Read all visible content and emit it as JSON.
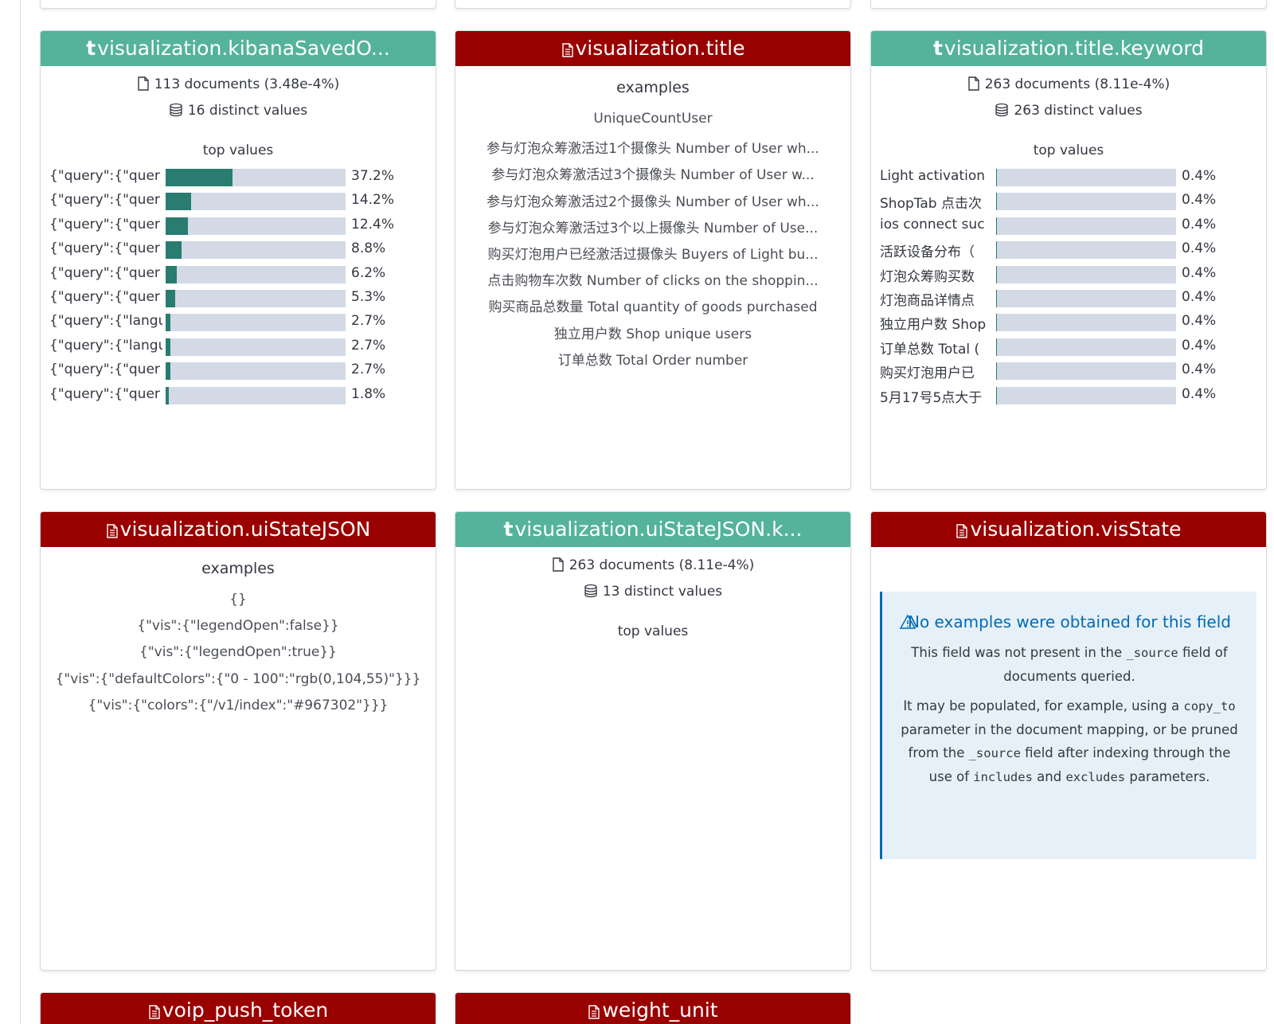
{
  "cards": [
    {
      "icon": "t",
      "name": "visualization.kibanaSavedO...",
      "header_color": "#54b39a",
      "documents": "113 documents (3.48e-4%)",
      "distinct": "16 distinct values",
      "top_values_title": "top values",
      "top_values": [
        {
          "label": "{\"query\":{\"quer",
          "value": 37.2,
          "value_label": "37.2%"
        },
        {
          "label": "{\"query\":{\"quer",
          "value": 14.2,
          "value_label": "14.2%"
        },
        {
          "label": "{\"query\":{\"quer",
          "value": 12.4,
          "value_label": "12.4%"
        },
        {
          "label": "{\"query\":{\"quer",
          "value": 8.8,
          "value_label": "8.8%"
        },
        {
          "label": "{\"query\":{\"quer",
          "value": 6.2,
          "value_label": "6.2%"
        },
        {
          "label": "{\"query\":{\"quer",
          "value": 5.3,
          "value_label": "5.3%"
        },
        {
          "label": "{\"query\":{\"langu",
          "value": 2.7,
          "value_label": "2.7%"
        },
        {
          "label": "{\"query\":{\"langu",
          "value": 2.7,
          "value_label": "2.7%"
        },
        {
          "label": "{\"query\":{\"quer",
          "value": 2.7,
          "value_label": "2.7%"
        },
        {
          "label": "{\"query\":{\"quer",
          "value": 1.8,
          "value_label": "1.8%"
        }
      ]
    },
    {
      "name": "visualization.title",
      "header_color": "#990000",
      "examples_title": "examples",
      "examples": [
        "UniqueCountUser",
        "参与灯泡众筹激活过1个摄像头 Number of User wh...",
        "参与灯泡众筹激活过3个摄像头 Number of User w...",
        "参与灯泡众筹激活过2个摄像头 Number of User wh...",
        "参与灯泡众筹激活过3个以上摄像头 Number of Use...",
        "购买灯泡用户已经激活过摄像头 Buyers of Light bu...",
        "点击购物车次数 Number of clicks on the shoppin...",
        "购买商品总数量 Total quantity of goods purchased",
        "独立用户数 Shop unique users",
        "订单总数 Total Order number"
      ]
    },
    {
      "icon": "t",
      "name": "visualization.title.keyword",
      "header_color": "#54b39a",
      "documents": "263 documents (8.11e-4%)",
      "distinct": "263 distinct values",
      "top_values_title": "top values",
      "top_values": [
        {
          "label": "Light activation",
          "value": 0.4,
          "value_label": "0.4%"
        },
        {
          "label": "ShopTab 点击次",
          "value": 0.4,
          "value_label": "0.4%"
        },
        {
          "label": "ios connect suc",
          "value": 0.4,
          "value_label": "0.4%"
        },
        {
          "label": "活跃设备分布（",
          "value": 0.4,
          "value_label": "0.4%"
        },
        {
          "label": "灯泡众筹购买数",
          "value": 0.4,
          "value_label": "0.4%"
        },
        {
          "label": "灯泡商品详情点",
          "value": 0.4,
          "value_label": "0.4%"
        },
        {
          "label": "独立用户数 Shop",
          "value": 0.4,
          "value_label": "0.4%"
        },
        {
          "label": "订单总数 Total (",
          "value": 0.4,
          "value_label": "0.4%"
        },
        {
          "label": "购买灯泡用户已",
          "value": 0.4,
          "value_label": "0.4%"
        },
        {
          "label": "5月17号5点大于",
          "value": 0.4,
          "value_label": "0.4%"
        }
      ]
    },
    {
      "name": "visualization.uiStateJSON",
      "header_color": "#990000",
      "examples_title": "examples",
      "examples": [
        "{}",
        "{\"vis\":{\"legendOpen\":false}}",
        "{\"vis\":{\"legendOpen\":true}}",
        "{\"vis\":{\"defaultColors\":{\"0 - 100\":\"rgb(0,104,55)\"}}}",
        "{\"vis\":{\"colors\":{\"/v1/index\":\"#967302\"}}}"
      ]
    },
    {
      "icon": "t",
      "name": "visualization.uiStateJSON.k...",
      "header_color": "#54b39a",
      "documents": "263 documents (8.11e-4%)",
      "distinct": "13 distinct values",
      "top_values_title": "top values"
    },
    {
      "name": "visualization.visState",
      "header_color": "#990000",
      "message": {
        "title": "No examples were obtained for this field",
        "paragraphs": [
          [
            {
              "text": "This field was not present in the "
            },
            {
              "code": "_source"
            },
            {
              "text": " field of documents queried."
            }
          ],
          [
            {
              "text": "It may be populated, for example, using a "
            },
            {
              "code": "copy_to"
            },
            {
              "text": " parameter in the document mapping, or be pruned from the "
            },
            {
              "code": "_source"
            },
            {
              "text": " field after indexing through the use of "
            },
            {
              "code": "includes"
            },
            {
              "text": " and "
            },
            {
              "code": "excludes"
            },
            {
              "text": " parameters."
            }
          ]
        ]
      }
    },
    {
      "name": "voip_push_token",
      "header_color": "#990000"
    },
    {
      "name": "weight_unit",
      "header_color": "#990000"
    }
  ]
}
